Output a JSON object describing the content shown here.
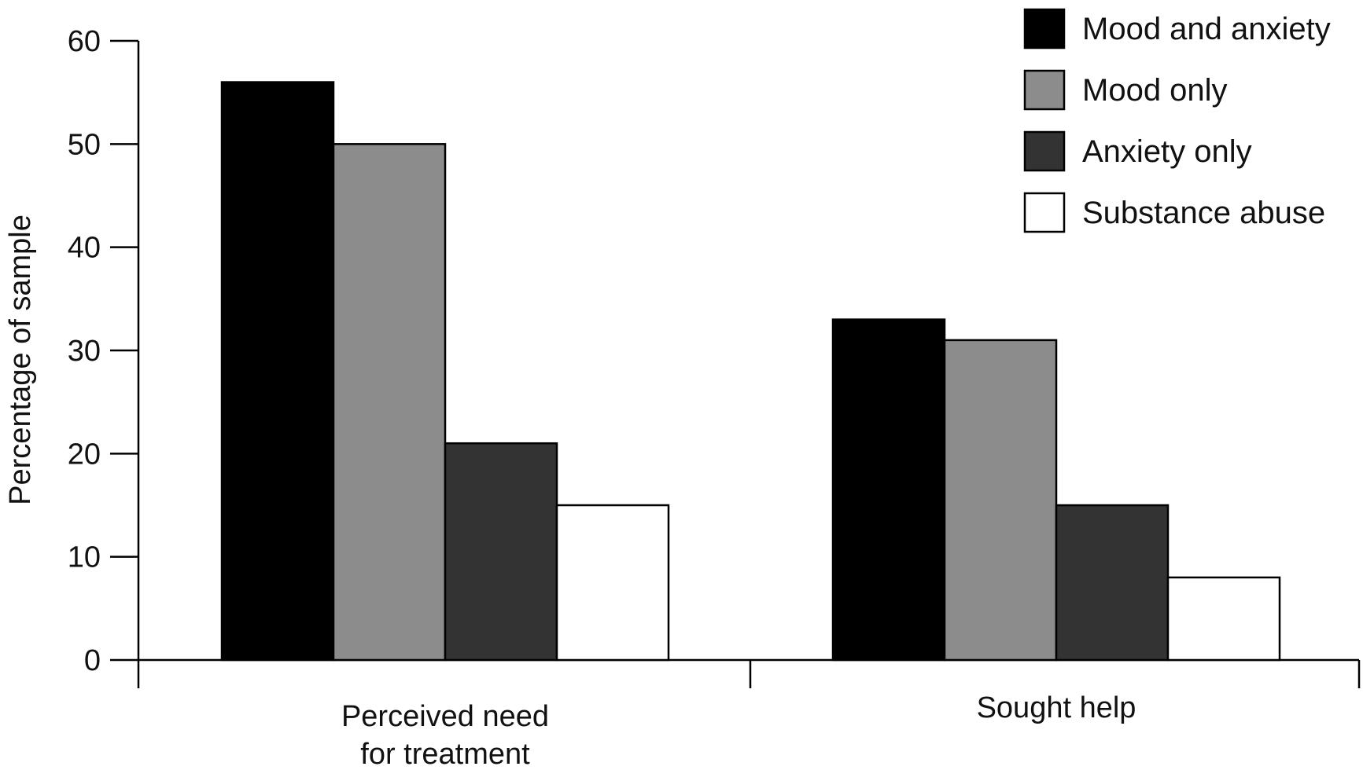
{
  "chart_data": {
    "type": "bar",
    "title": "",
    "ylabel": "Percentage of sample",
    "xlabel": "",
    "ylim": [
      0,
      60
    ],
    "yticks": [
      0,
      10,
      20,
      30,
      40,
      50,
      60
    ],
    "categories": [
      [
        "Perceived need",
        "for treatment"
      ],
      [
        "Sought help"
      ]
    ],
    "series": [
      {
        "name": "Mood and anxiety",
        "color": "#000000",
        "values": [
          56,
          33
        ]
      },
      {
        "name": "Mood only",
        "color": "#8c8c8c",
        "values": [
          50,
          31
        ]
      },
      {
        "name": "Anxiety only",
        "color": "#333333",
        "values": [
          21,
          15
        ]
      },
      {
        "name": "Substance abuse",
        "color": "#ffffff",
        "values": [
          15,
          8
        ]
      }
    ],
    "legend": {
      "position": "top-right"
    },
    "grid": false
  }
}
